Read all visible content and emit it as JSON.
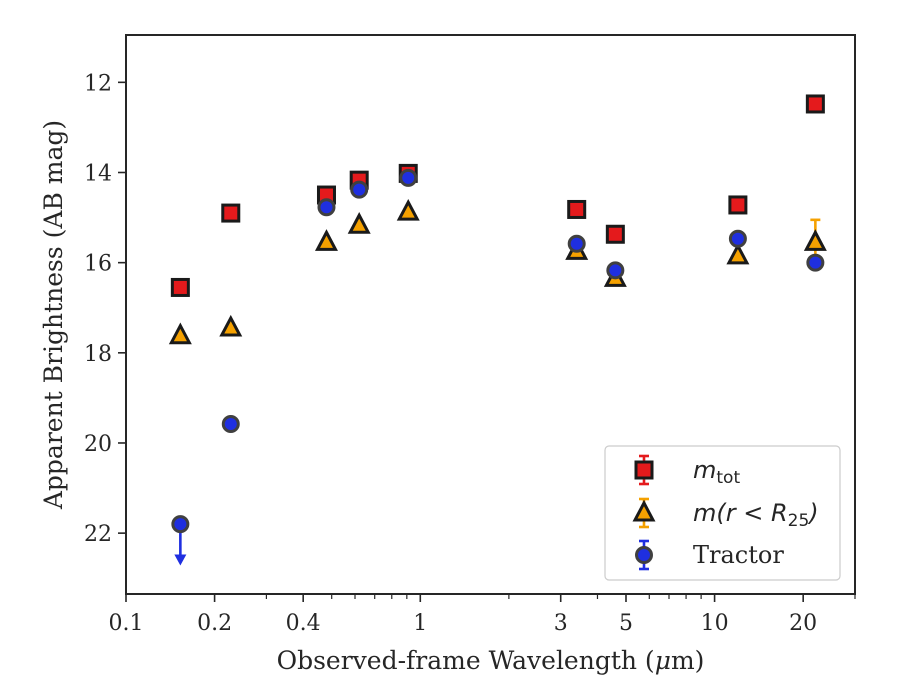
{
  "chart_data": {
    "type": "scatter",
    "xlabel_pre": "Observed-frame Wavelength (",
    "xlabel_mu": "μ",
    "xlabel_post": "m)",
    "ylabel": "Apparent Brightness (AB mag)",
    "xscale": "log",
    "xlim": [
      0.1,
      30
    ],
    "ylim": [
      23.35,
      10.95
    ],
    "y_inverted": true,
    "xticks": [
      {
        "value": 0.1,
        "label": "0.1"
      },
      {
        "value": 0.2,
        "label": "0.2"
      },
      {
        "value": 0.4,
        "label": "0.4"
      },
      {
        "value": 1,
        "label": "1"
      },
      {
        "value": 3,
        "label": "3"
      },
      {
        "value": 5,
        "label": "5"
      },
      {
        "value": 10,
        "label": "10"
      },
      {
        "value": 20,
        "label": "20"
      }
    ],
    "yticks": [
      {
        "value": 12,
        "label": "12"
      },
      {
        "value": 14,
        "label": "14"
      },
      {
        "value": 16,
        "label": "16"
      },
      {
        "value": 18,
        "label": "18"
      },
      {
        "value": 20,
        "label": "20"
      },
      {
        "value": 22,
        "label": "22"
      }
    ],
    "grid": false,
    "legend_position": "lower-right",
    "series": [
      {
        "key": "mtot",
        "legend_main": "m",
        "legend_sub": "tot",
        "marker": "square",
        "color": "#e41a1c",
        "edgecolor": "#1a1a1a",
        "points": [
          {
            "x": 0.153,
            "y": 16.55,
            "err": 0.05
          },
          {
            "x": 0.227,
            "y": 14.9,
            "err": 0.05
          },
          {
            "x": 0.48,
            "y": 14.5,
            "err": 0.05
          },
          {
            "x": 0.62,
            "y": 14.17,
            "err": 0.12
          },
          {
            "x": 0.91,
            "y": 14.02,
            "err": 0.1
          },
          {
            "x": 3.4,
            "y": 14.82,
            "err": 0.05
          },
          {
            "x": 4.6,
            "y": 15.37,
            "err": 0.05
          },
          {
            "x": 12.0,
            "y": 14.72,
            "err": 0.05
          },
          {
            "x": 22.0,
            "y": 12.48,
            "err": 0.05
          }
        ]
      },
      {
        "key": "mr25",
        "legend_pre": "m(r < R",
        "legend_sub": "25",
        "legend_post": ")",
        "marker": "triangle",
        "color": "#f5a100",
        "edgecolor": "#1a1a1a",
        "points": [
          {
            "x": 0.153,
            "y": 17.62,
            "err": 0.05
          },
          {
            "x": 0.227,
            "y": 17.45,
            "err": 0.05
          },
          {
            "x": 0.48,
            "y": 15.55,
            "err": 0.05
          },
          {
            "x": 0.62,
            "y": 15.17,
            "err": 0.05
          },
          {
            "x": 0.91,
            "y": 14.88,
            "err": 0.05
          },
          {
            "x": 3.4,
            "y": 15.75,
            "err": 0.05
          },
          {
            "x": 4.6,
            "y": 16.35,
            "err": 0.05
          },
          {
            "x": 12.0,
            "y": 15.85,
            "err": 0.05
          },
          {
            "x": 22.0,
            "y": 15.55,
            "err": 0.5
          }
        ]
      },
      {
        "key": "tractor",
        "name": "Tractor",
        "marker": "circle",
        "color": "#1f2fe0",
        "edgecolor": "#404040",
        "points": [
          {
            "x": 0.153,
            "y": 21.8,
            "upper_limit": true
          },
          {
            "x": 0.227,
            "y": 19.58,
            "err": 0.05
          },
          {
            "x": 0.48,
            "y": 14.77,
            "err": 0.05
          },
          {
            "x": 0.62,
            "y": 14.38,
            "err": 0.05
          },
          {
            "x": 0.91,
            "y": 14.12,
            "err": 0.05
          },
          {
            "x": 3.4,
            "y": 15.58,
            "err": 0.05
          },
          {
            "x": 4.6,
            "y": 16.17,
            "err": 0.05
          },
          {
            "x": 12.0,
            "y": 15.47,
            "err": 0.05
          },
          {
            "x": 22.0,
            "y": 16.0,
            "err": 0.05
          }
        ]
      }
    ]
  }
}
